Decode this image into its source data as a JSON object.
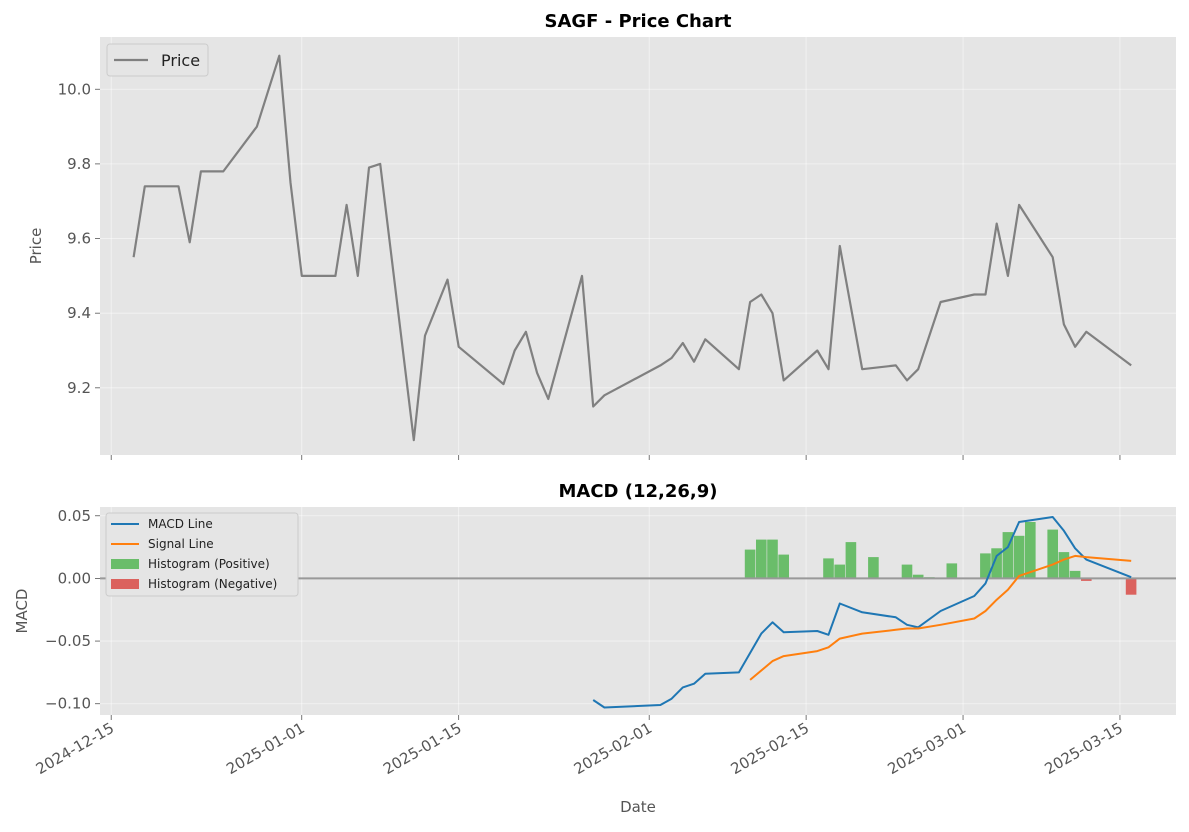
{
  "chart_data": [
    {
      "type": "line",
      "title": "SAGF - Price Chart",
      "xlabel": "",
      "ylabel": "Price",
      "ylim": [
        9.02,
        10.14
      ],
      "yticks": [
        9.2,
        9.4,
        9.6,
        9.8,
        10.0
      ],
      "ytick_labels": [
        "9.2",
        "9.4",
        "9.6",
        "9.8",
        "10.0"
      ],
      "grid": true,
      "legend_position": "upper-left",
      "series": [
        {
          "name": "Price",
          "color": "#808080",
          "points": [
            [
              "2024-12-17",
              9.55
            ],
            [
              "2024-12-18",
              9.74
            ],
            [
              "2024-12-21",
              9.74
            ],
            [
              "2024-12-22",
              9.59
            ],
            [
              "2024-12-23",
              9.78
            ],
            [
              "2024-12-25",
              9.78
            ],
            [
              "2024-12-28",
              9.9
            ],
            [
              "2024-12-30",
              10.09
            ],
            [
              "2024-12-31",
              9.75
            ],
            [
              "2025-01-01",
              9.5
            ],
            [
              "2025-01-04",
              9.5
            ],
            [
              "2025-01-05",
              9.69
            ],
            [
              "2025-01-06",
              9.5
            ],
            [
              "2025-01-07",
              9.79
            ],
            [
              "2025-01-08",
              9.8
            ],
            [
              "2025-01-11",
              9.06
            ],
            [
              "2025-01-12",
              9.34
            ],
            [
              "2025-01-14",
              9.49
            ],
            [
              "2025-01-15",
              9.31
            ],
            [
              "2025-01-19",
              9.21
            ],
            [
              "2025-01-20",
              9.3
            ],
            [
              "2025-01-21",
              9.35
            ],
            [
              "2025-01-22",
              9.24
            ],
            [
              "2025-01-23",
              9.17
            ],
            [
              "2025-01-26",
              9.5
            ],
            [
              "2025-01-27",
              9.15
            ],
            [
              "2025-01-28",
              9.18
            ],
            [
              "2025-02-02",
              9.26
            ],
            [
              "2025-02-03",
              9.28
            ],
            [
              "2025-02-04",
              9.32
            ],
            [
              "2025-02-05",
              9.27
            ],
            [
              "2025-02-06",
              9.33
            ],
            [
              "2025-02-09",
              9.25
            ],
            [
              "2025-02-10",
              9.43
            ],
            [
              "2025-02-11",
              9.45
            ],
            [
              "2025-02-12",
              9.4
            ],
            [
              "2025-02-13",
              9.22
            ],
            [
              "2025-02-16",
              9.3
            ],
            [
              "2025-02-17",
              9.25
            ],
            [
              "2025-02-18",
              9.58
            ],
            [
              "2025-02-20",
              9.25
            ],
            [
              "2025-02-23",
              9.26
            ],
            [
              "2025-02-24",
              9.22
            ],
            [
              "2025-02-25",
              9.25
            ],
            [
              "2025-02-27",
              9.43
            ],
            [
              "2025-03-02",
              9.45
            ],
            [
              "2025-03-03",
              9.45
            ],
            [
              "2025-03-04",
              9.64
            ],
            [
              "2025-03-05",
              9.5
            ],
            [
              "2025-03-06",
              9.69
            ],
            [
              "2025-03-09",
              9.55
            ],
            [
              "2025-03-10",
              9.37
            ],
            [
              "2025-03-11",
              9.31
            ],
            [
              "2025-03-12",
              9.35
            ],
            [
              "2025-03-16",
              9.26
            ]
          ]
        }
      ]
    },
    {
      "type": "line",
      "title": "MACD (12,26,9)",
      "xlabel": "Date",
      "ylabel": "MACD",
      "ylim": [
        -0.109,
        0.057
      ],
      "yticks": [
        -0.1,
        -0.05,
        0.0,
        0.05
      ],
      "ytick_labels": [
        "−0.10",
        "−0.05",
        "0.00",
        "0.05"
      ],
      "xlim": [
        "2024-12-14",
        "2025-03-20"
      ],
      "xticks": [
        "2024-12-15",
        "2025-01-01",
        "2025-01-15",
        "2025-02-01",
        "2025-02-15",
        "2025-03-01",
        "2025-03-15"
      ],
      "xtick_labels": [
        "2024-12-15",
        "2025-01-01",
        "2025-01-15",
        "2025-02-01",
        "2025-02-15",
        "2025-03-01",
        "2025-03-15"
      ],
      "grid": true,
      "legend_position": "upper-left",
      "zero_line_color": "#999999",
      "series": [
        {
          "name": "MACD Line",
          "color": "#1f77b4",
          "points": [
            [
              "2025-01-27",
              -0.097
            ],
            [
              "2025-01-28",
              -0.103
            ],
            [
              "2025-02-02",
              -0.101
            ],
            [
              "2025-02-03",
              -0.096
            ],
            [
              "2025-02-04",
              -0.087
            ],
            [
              "2025-02-05",
              -0.084
            ],
            [
              "2025-02-06",
              -0.076
            ],
            [
              "2025-02-09",
              -0.075
            ],
            [
              "2025-02-11",
              -0.044
            ],
            [
              "2025-02-12",
              -0.035
            ],
            [
              "2025-02-13",
              -0.043
            ],
            [
              "2025-02-16",
              -0.042
            ],
            [
              "2025-02-17",
              -0.045
            ],
            [
              "2025-02-18",
              -0.02
            ],
            [
              "2025-02-20",
              -0.027
            ],
            [
              "2025-02-23",
              -0.031
            ],
            [
              "2025-02-24",
              -0.037
            ],
            [
              "2025-02-25",
              -0.039
            ],
            [
              "2025-02-27",
              -0.026
            ],
            [
              "2025-03-02",
              -0.014
            ],
            [
              "2025-03-03",
              -0.004
            ],
            [
              "2025-03-04",
              0.018
            ],
            [
              "2025-03-05",
              0.025
            ],
            [
              "2025-03-06",
              0.045
            ],
            [
              "2025-03-09",
              0.049
            ],
            [
              "2025-03-10",
              0.038
            ],
            [
              "2025-03-11",
              0.024
            ],
            [
              "2025-03-12",
              0.015
            ],
            [
              "2025-03-16",
              0.001
            ]
          ]
        },
        {
          "name": "Signal Line",
          "color": "#ff7f0e",
          "points": [
            [
              "2025-02-10",
              -0.081
            ],
            [
              "2025-02-12",
              -0.066
            ],
            [
              "2025-02-13",
              -0.062
            ],
            [
              "2025-02-16",
              -0.058
            ],
            [
              "2025-02-17",
              -0.055
            ],
            [
              "2025-02-18",
              -0.048
            ],
            [
              "2025-02-20",
              -0.044
            ],
            [
              "2025-02-23",
              -0.041
            ],
            [
              "2025-02-24",
              -0.04
            ],
            [
              "2025-02-25",
              -0.04
            ],
            [
              "2025-02-27",
              -0.037
            ],
            [
              "2025-03-02",
              -0.032
            ],
            [
              "2025-03-03",
              -0.026
            ],
            [
              "2025-03-04",
              -0.017
            ],
            [
              "2025-03-05",
              -0.009
            ],
            [
              "2025-03-06",
              0.002
            ],
            [
              "2025-03-09",
              0.011
            ],
            [
              "2025-03-10",
              0.015
            ],
            [
              "2025-03-11",
              0.018
            ],
            [
              "2025-03-12",
              0.017
            ],
            [
              "2025-03-16",
              0.014
            ]
          ]
        }
      ],
      "histogram": {
        "positive_name": "Histogram (Positive)",
        "negative_name": "Histogram (Negative)",
        "positive_color": "#5cb85c",
        "negative_color": "#d9534f",
        "bars": [
          [
            "2025-02-10",
            0.023
          ],
          [
            "2025-02-11",
            0.031
          ],
          [
            "2025-02-12",
            0.031
          ],
          [
            "2025-02-13",
            0.019
          ],
          [
            "2025-02-17",
            0.016
          ],
          [
            "2025-02-18",
            0.011
          ],
          [
            "2025-02-19",
            0.029
          ],
          [
            "2025-02-21",
            0.017
          ],
          [
            "2025-02-24",
            0.011
          ],
          [
            "2025-02-25",
            0.003
          ],
          [
            "2025-02-26",
            0.001
          ],
          [
            "2025-02-28",
            0.012
          ],
          [
            "2025-03-03",
            0.02
          ],
          [
            "2025-03-04",
            0.024
          ],
          [
            "2025-03-05",
            0.037
          ],
          [
            "2025-03-06",
            0.034
          ],
          [
            "2025-03-07",
            0.045
          ],
          [
            "2025-03-09",
            0.039
          ],
          [
            "2025-03-10",
            0.021
          ],
          [
            "2025-03-11",
            0.006
          ],
          [
            "2025-03-12",
            -0.002
          ],
          [
            "2025-03-16",
            -0.013
          ]
        ]
      }
    }
  ]
}
